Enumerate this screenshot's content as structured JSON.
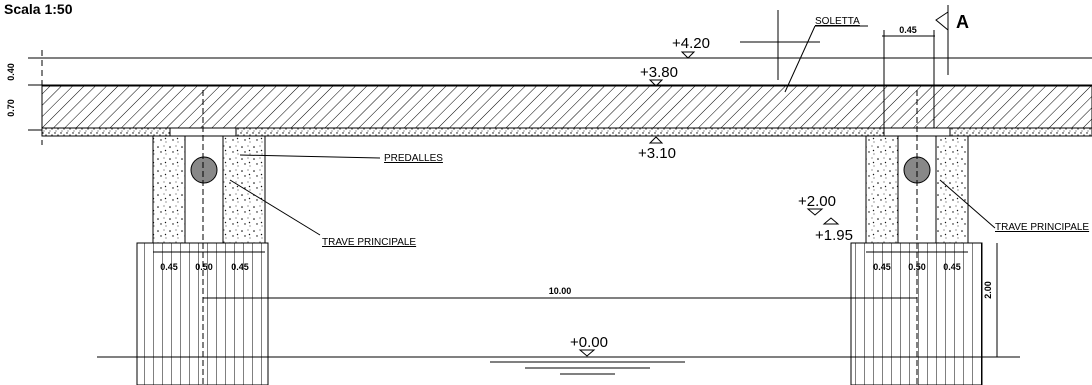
{
  "title": "Scala 1:50",
  "section_marker": "A",
  "labels": {
    "soletta": "SOLETTA",
    "predalles": "PREDALLES",
    "trave_left": "TRAVE PRINCIPALE",
    "trave_right": "TRAVE PRINCIPALE"
  },
  "levels": {
    "top": "+4.20",
    "slab_top": "+3.80",
    "slab_bottom": "+3.10",
    "pier_top": "+2.00",
    "pier_seat": "+1.95",
    "water": "+0.00"
  },
  "dimensions": {
    "top_width": "0.45",
    "height_upper": "0.40",
    "height_slab": "0.70",
    "left": [
      "0.45",
      "0.50",
      "0.45"
    ],
    "right": [
      "0.45",
      "0.50",
      "0.45"
    ],
    "span": "10.00",
    "pier_height": "2.00"
  }
}
